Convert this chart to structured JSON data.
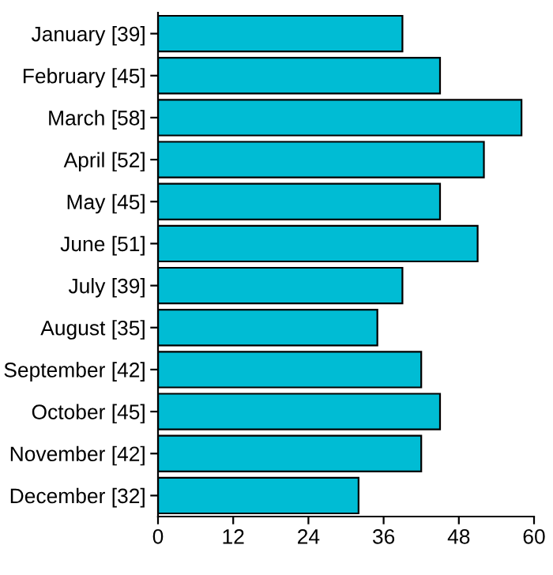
{
  "chart_data": {
    "type": "bar",
    "orientation": "horizontal",
    "categories": [
      "January [39]",
      "February [45]",
      "March [58]",
      "April [52]",
      "May [45]",
      "June [51]",
      "July [39]",
      "August [35]",
      "September [42]",
      "October [45]",
      "November [42]",
      "December [32]"
    ],
    "values": [
      39,
      45,
      58,
      52,
      45,
      51,
      39,
      35,
      42,
      45,
      42,
      32
    ],
    "color": "#00bcd4",
    "xlim": [
      0,
      60
    ],
    "xticks": [
      0,
      12,
      24,
      36,
      48,
      60
    ],
    "grid": false,
    "legend": false
  }
}
